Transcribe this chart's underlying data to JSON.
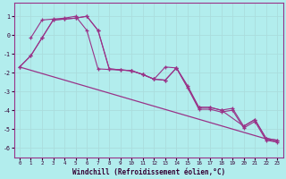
{
  "xlabel": "Windchill (Refroidissement éolien,°C)",
  "background_color": "#b2eded",
  "grid_color": "#cceeee",
  "line_color": "#993388",
  "xlim": [
    -0.5,
    23.5
  ],
  "ylim": [
    -6.5,
    1.7
  ],
  "yticks": [
    -6,
    -5,
    -4,
    -3,
    -2,
    -1,
    0,
    1
  ],
  "xticks": [
    0,
    1,
    2,
    3,
    4,
    5,
    6,
    7,
    8,
    9,
    10,
    11,
    12,
    13,
    14,
    15,
    16,
    17,
    18,
    19,
    20,
    21,
    22,
    23
  ],
  "series": [
    {
      "x": [
        0,
        1,
        2,
        3,
        4,
        5,
        6,
        7,
        8,
        9,
        10,
        11,
        12,
        13,
        14,
        15,
        16,
        17,
        18,
        19,
        20,
        21,
        22,
        23
      ],
      "y": [
        -1.7,
        -1.1,
        -0.15,
        0.8,
        0.85,
        0.9,
        1.0,
        0.25,
        -1.8,
        -1.85,
        -1.9,
        -2.1,
        -2.35,
        -2.4,
        -1.75,
        -2.7,
        -3.85,
        -3.85,
        -4.0,
        -3.9,
        -4.85,
        -4.5,
        -5.5,
        -5.6
      ]
    },
    {
      "x": [
        0,
        1,
        2,
        3,
        4,
        5,
        6,
        7,
        8,
        9,
        10,
        11,
        12,
        13,
        14,
        15,
        16,
        17,
        18,
        19,
        20,
        21,
        22,
        23
      ],
      "y": [
        -1.7,
        -1.1,
        -0.15,
        0.8,
        0.85,
        0.9,
        1.0,
        0.25,
        -1.8,
        -1.85,
        -1.9,
        -2.1,
        -2.35,
        -2.4,
        -1.75,
        -2.8,
        -3.95,
        -3.95,
        -4.1,
        -4.0,
        -4.95,
        -4.6,
        -5.6,
        -5.7
      ]
    },
    {
      "x": [
        1,
        2,
        3,
        4,
        5,
        6,
        7,
        10,
        11,
        12,
        13,
        14,
        16,
        17,
        18,
        20,
        21,
        22,
        23
      ],
      "y": [
        -0.15,
        0.8,
        0.85,
        0.9,
        1.0,
        0.25,
        -1.8,
        -1.9,
        -2.1,
        -2.35,
        -1.7,
        -1.75,
        -3.85,
        -3.85,
        -4.0,
        -4.85,
        -4.5,
        -5.5,
        -5.6
      ]
    },
    {
      "x": [
        0,
        23
      ],
      "y": [
        -1.7,
        -5.7
      ]
    }
  ]
}
